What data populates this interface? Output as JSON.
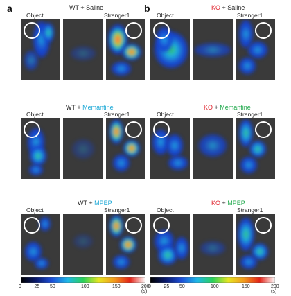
{
  "panels": {
    "a": "a",
    "b": "b"
  },
  "labels": {
    "object": "Object",
    "stranger": "Stranger1"
  },
  "rows": [
    {
      "a": {
        "genotype": "WT",
        "sep": " + ",
        "drug": "Saline"
      },
      "b": {
        "genotype": "KO",
        "sep": " + ",
        "drug": "Saline"
      }
    },
    {
      "a": {
        "genotype": "WT",
        "sep": " + ",
        "drug": "Memantine"
      },
      "b": {
        "genotype": "KO",
        "sep": " + ",
        "drug": "Memantine"
      }
    },
    {
      "a": {
        "genotype": "WT",
        "sep": " + ",
        "drug": "MPEP"
      },
      "b": {
        "genotype": "KO",
        "sep": " + ",
        "drug": "MPEP"
      }
    }
  ],
  "colorbar": {
    "ticks": [
      "0",
      "25",
      "50",
      "100",
      "150",
      "200 (s)"
    ],
    "tick_values": [
      0,
      25,
      50,
      100,
      150,
      200
    ],
    "max": 200,
    "colors": [
      "#000000",
      "#0a1a6e",
      "#1d4fd8",
      "#1fb8e8",
      "#2ad15a",
      "#e7e622",
      "#f29a1c",
      "#e42318",
      "#ffffff"
    ]
  }
}
